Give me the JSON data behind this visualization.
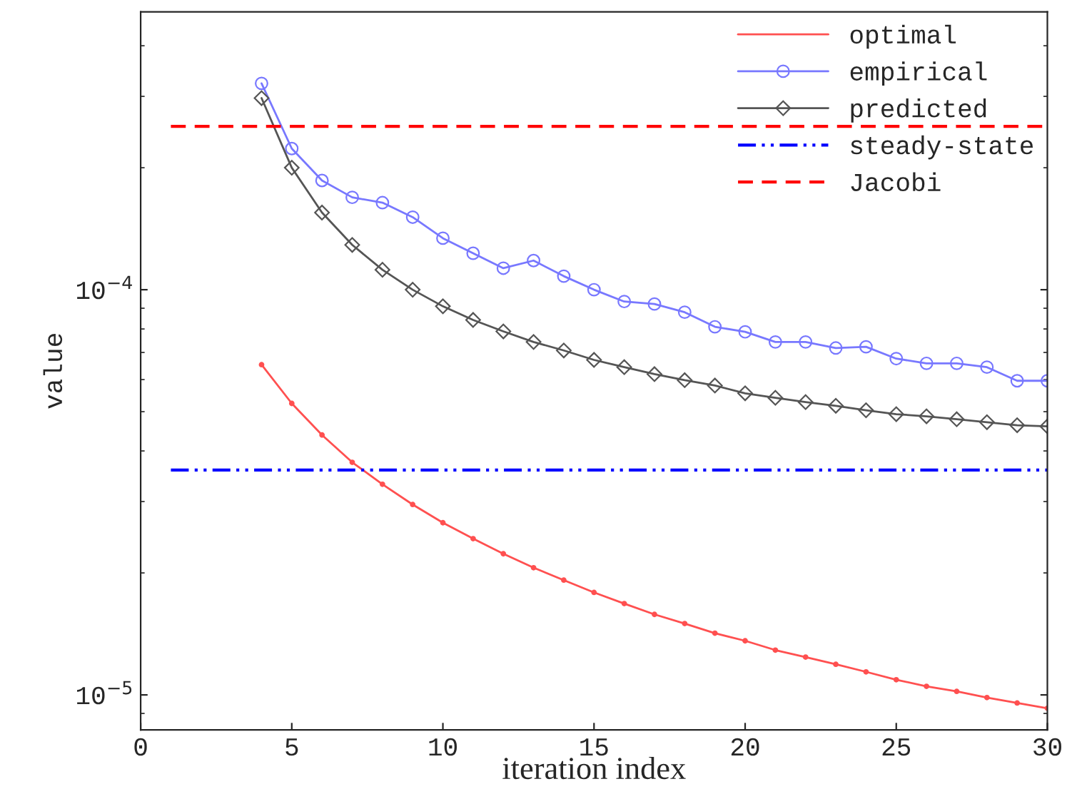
{
  "chart_data": {
    "type": "line",
    "xlabel": "iteration index",
    "ylabel": "value",
    "log": "y",
    "legend": "top right",
    "grid": false,
    "xlim": [
      0,
      30
    ],
    "xticks": [
      0,
      5,
      10,
      15,
      20,
      25,
      30
    ],
    "ylim": [
      8.2e-06,
      0.000485
    ],
    "yticks": [
      {
        "value": 1e-05,
        "label": "10$^{−5}$"
      },
      {
        "value": 0.0001,
        "label": "10$^{−4}$"
      }
    ],
    "series": [
      {
        "name": "optimal",
        "color": "#ff5050",
        "marker": "circle",
        "line_style": "solid",
        "x": [
          4,
          5,
          6,
          7,
          8,
          9,
          10,
          11,
          12,
          13,
          14,
          15,
          16,
          17,
          18,
          19,
          20,
          21,
          22,
          23,
          24,
          25,
          26,
          27,
          28,
          29,
          30
        ],
        "values": [
          6.53e-05,
          5.24e-05,
          4.38e-05,
          3.75e-05,
          3.31e-05,
          2.95e-05,
          2.66e-05,
          2.43e-05,
          2.23e-05,
          2.06e-05,
          1.92e-05,
          1.79e-05,
          1.68e-05,
          1.58e-05,
          1.5e-05,
          1.42e-05,
          1.36e-05,
          1.29e-05,
          1.24e-05,
          1.19e-05,
          1.14e-05,
          1.09e-05,
          1.05e-05,
          1.02e-05,
          9.85e-06,
          9.55e-06,
          9.27e-06
        ]
      },
      {
        "name": "empirical",
        "color": "#7878ff",
        "marker": "circle",
        "line_style": "solid",
        "x": [
          4,
          5,
          6,
          7,
          8,
          9,
          10,
          11,
          12,
          13,
          14,
          15,
          16,
          17,
          18,
          19,
          20,
          21,
          22,
          23,
          24,
          25,
          26,
          27,
          28,
          29,
          30
        ],
        "values": [
          0.000323,
          0.000223,
          0.000186,
          0.000169,
          0.000164,
          0.000151,
          0.000134,
          0.000123,
          0.000113,
          0.000118,
          0.000108,
          0.0001,
          9.35e-05,
          9.22e-05,
          8.8e-05,
          8.1e-05,
          7.87e-05,
          7.43e-05,
          7.43e-05,
          7.18e-05,
          7.23e-05,
          6.76e-05,
          6.58e-05,
          6.58e-05,
          6.44e-05,
          5.96e-05,
          5.96e-05
        ]
      },
      {
        "name": "predicted",
        "color": "#555555",
        "marker": "diamond",
        "line_style": "solid",
        "x": [
          4,
          5,
          6,
          7,
          8,
          9,
          10,
          11,
          12,
          13,
          14,
          15,
          16,
          17,
          18,
          19,
          20,
          21,
          22,
          23,
          24,
          25,
          26,
          27,
          28,
          29,
          30
        ],
        "values": [
          0.000297,
          0.0002,
          0.000155,
          0.000129,
          0.000112,
          0.0001,
          9.1e-05,
          8.42e-05,
          7.89e-05,
          7.43e-05,
          7.08e-05,
          6.71e-05,
          6.44e-05,
          6.19e-05,
          5.98e-05,
          5.8e-05,
          5.55e-05,
          5.41e-05,
          5.28e-05,
          5.17e-05,
          5.04e-05,
          4.93e-05,
          4.87e-05,
          4.79e-05,
          4.71e-05,
          4.63e-05,
          4.6e-05
        ]
      },
      {
        "name": "steady-state",
        "color": "#0000ff",
        "marker": "none",
        "line_style": "dashdot",
        "x": [
          1,
          30
        ],
        "values": [
          3.59e-05,
          3.59e-05
        ]
      },
      {
        "name": "Jacobi",
        "color": "#ff0000",
        "marker": "none",
        "line_style": "dashed",
        "x": [
          1,
          30
        ],
        "values": [
          0.000253,
          0.000253
        ]
      }
    ]
  }
}
